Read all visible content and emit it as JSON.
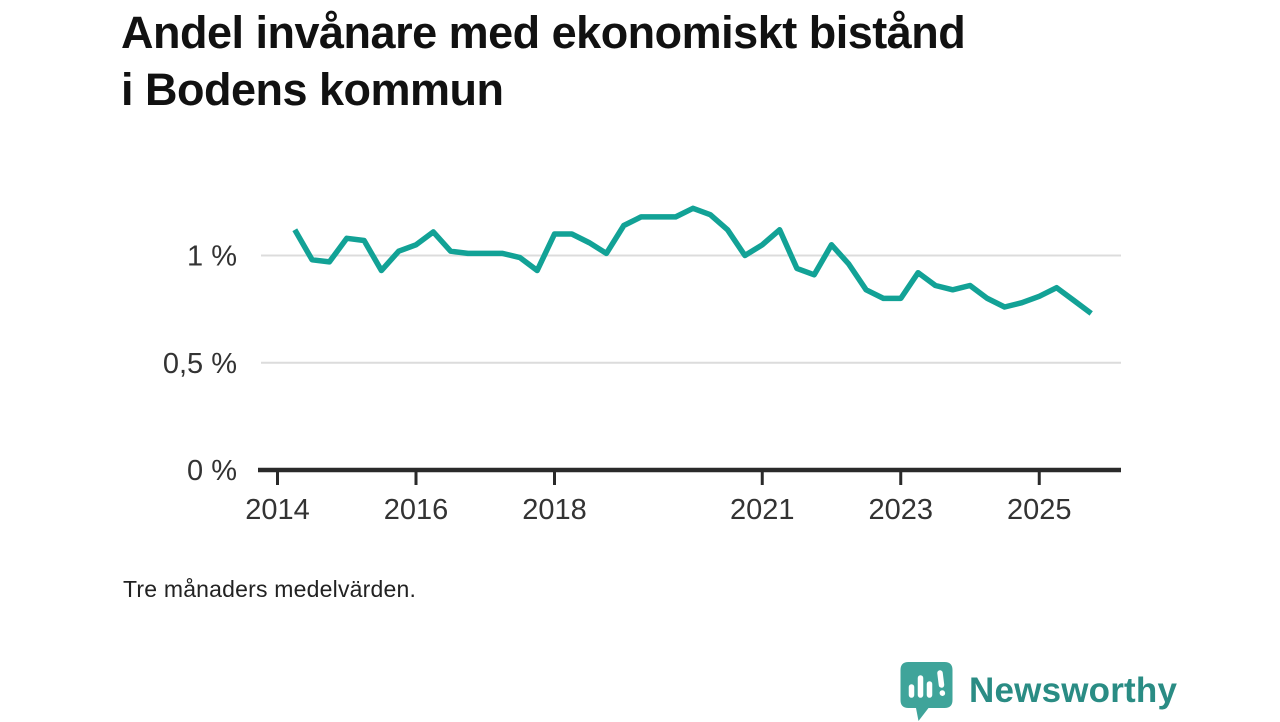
{
  "title": "Andel invånare med ekonomiskt bistånd i Bodens kommun",
  "note": "Tre månaders medelvärden.",
  "logo": {
    "text": "Newsworthy",
    "icon": "bar-chart-speech-bubble-icon",
    "badge_color": "#3fa49a",
    "text_color": "#2a8c84"
  },
  "colors": {
    "line": "#12a296",
    "grid": "#dcdcdc",
    "axis": "#2a2a2a",
    "tick_label": "#333333",
    "background": "#ffffff"
  },
  "chart_data": {
    "type": "line",
    "title": "Andel invånare med ekonomiskt bistånd i Bodens kommun",
    "note": "Tre månaders medelvärden.",
    "unit": "%",
    "decimal_separator": ",",
    "grid": "horizontal",
    "legend": "none",
    "x_start_year": 2014.25,
    "x_step_years": 0.25,
    "series_name": "Andel invånare med ekonomiskt bistånd, Bodens kommun",
    "values": [
      1.12,
      0.98,
      0.97,
      1.08,
      1.07,
      0.93,
      1.02,
      1.05,
      1.11,
      1.02,
      1.01,
      1.01,
      1.01,
      0.99,
      0.93,
      1.1,
      1.1,
      1.06,
      1.01,
      1.14,
      1.18,
      1.18,
      1.18,
      1.22,
      1.19,
      1.12,
      1.0,
      1.05,
      1.12,
      0.94,
      0.91,
      1.05,
      0.96,
      0.84,
      0.8,
      0.8,
      0.92,
      0.86,
      0.84,
      0.86,
      0.8,
      0.76,
      0.78,
      0.81,
      0.85,
      0.79,
      0.73
    ],
    "y_ticks": [
      {
        "value": 1,
        "label": "1 %"
      },
      {
        "value": 0.5,
        "label": "0,5 %"
      },
      {
        "value": 0,
        "label": "0 %"
      }
    ],
    "x_ticks": [
      {
        "value": 2014,
        "label": "2014"
      },
      {
        "value": 2016,
        "label": "2016"
      },
      {
        "value": 2018,
        "label": "2018"
      },
      {
        "value": 2021,
        "label": "2021"
      },
      {
        "value": 2023,
        "label": "2023"
      },
      {
        "value": 2025,
        "label": "2025"
      }
    ],
    "ylim": [
      0,
      1.35
    ],
    "xlim": [
      2013.7,
      2026.2
    ]
  }
}
